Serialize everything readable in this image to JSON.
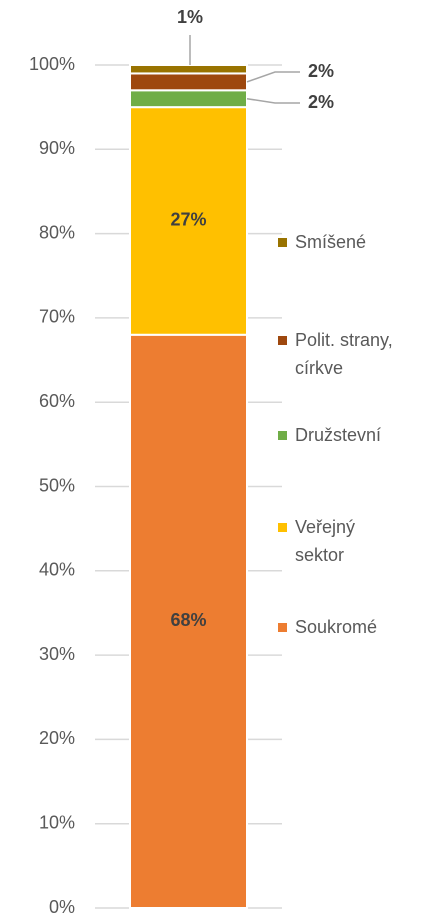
{
  "chart_data": {
    "type": "stacked_bar",
    "categories": [
      null
    ],
    "series": [
      {
        "name": "Soukromé",
        "color": "#ed7d31",
        "values": [
          68
        ],
        "value_labels": [
          "68%"
        ]
      },
      {
        "name": "Veřejný sektor",
        "color": "#ffc000",
        "values": [
          27
        ],
        "value_labels": [
          "27%"
        ]
      },
      {
        "name": "Družstevní",
        "color": "#70ad47",
        "values": [
          2
        ],
        "value_labels": [
          "2%"
        ]
      },
      {
        "name": "Polit. strany, církve",
        "color": "#9e480e",
        "values": [
          2
        ],
        "value_labels": [
          "2%"
        ]
      },
      {
        "name": "Smíšené",
        "color": "#997300",
        "values": [
          1
        ],
        "value_labels": [
          "1%"
        ]
      }
    ],
    "ylim": [
      0,
      100
    ],
    "yticks": [
      {
        "value": 0,
        "label": "0%"
      },
      {
        "value": 10,
        "label": "10%"
      },
      {
        "value": 20,
        "label": "20%"
      },
      {
        "value": 30,
        "label": "30%"
      },
      {
        "value": 40,
        "label": "40%"
      },
      {
        "value": 50,
        "label": "50%"
      },
      {
        "value": 60,
        "label": "60%"
      },
      {
        "value": 70,
        "label": "70%"
      },
      {
        "value": 80,
        "label": "80%"
      },
      {
        "value": 90,
        "label": "90%"
      },
      {
        "value": 100,
        "label": "100%"
      }
    ],
    "grid": true,
    "legend": "right"
  }
}
